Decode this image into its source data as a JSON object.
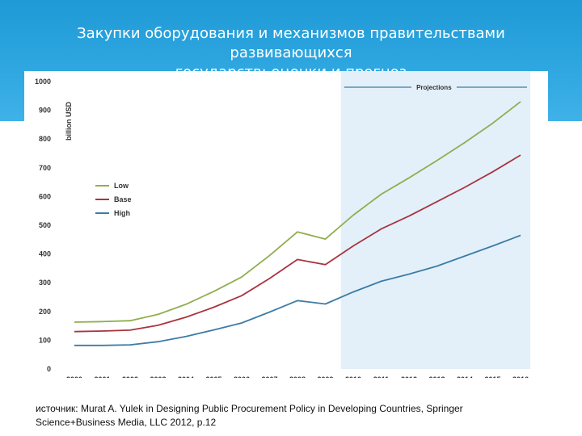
{
  "slide": {
    "title_line1": "Закупки оборудования и механизмов правительствами развивающихся",
    "title_line2": "государств: оценки и прогноз",
    "source_line1": "источник: Murat A. Yulek in Designing Public Procurement Policy in Developing Countries, Springer",
    "source_line2": "Science+Business Media, LLC 2012, p.12"
  },
  "chart_data": {
    "type": "line",
    "title": "",
    "xlabel": "",
    "ylabel": "billion USD",
    "ylim": [
      0,
      1000
    ],
    "yticks": [
      0,
      100,
      200,
      300,
      400,
      500,
      600,
      700,
      800,
      900,
      1000
    ],
    "x": [
      2000,
      2001,
      2002,
      2003,
      2004,
      2005,
      2006,
      2007,
      2008,
      2009,
      2010,
      2011,
      2012,
      2013,
      2014,
      2015,
      2016
    ],
    "grid": false,
    "legend_position": "left",
    "projection_region": {
      "label": "Projections",
      "from": 2010,
      "to": 2016
    },
    "series": [
      {
        "name": "Low",
        "color": "#8fae4e",
        "values": [
          163,
          165,
          168,
          190,
          225,
          270,
          320,
          395,
          477,
          452,
          535,
          608,
          665,
          725,
          788,
          855,
          930
        ]
      },
      {
        "name": "Base",
        "color": "#a8343f",
        "values": [
          130,
          132,
          135,
          152,
          180,
          215,
          255,
          315,
          381,
          363,
          428,
          487,
          532,
          582,
          632,
          686,
          744
        ]
      },
      {
        "name": "High",
        "color": "#3c7ca5",
        "values": [
          82,
          82,
          84,
          95,
          113,
          136,
          160,
          198,
          238,
          226,
          268,
          305,
          330,
          358,
          393,
          428,
          465
        ]
      }
    ]
  }
}
